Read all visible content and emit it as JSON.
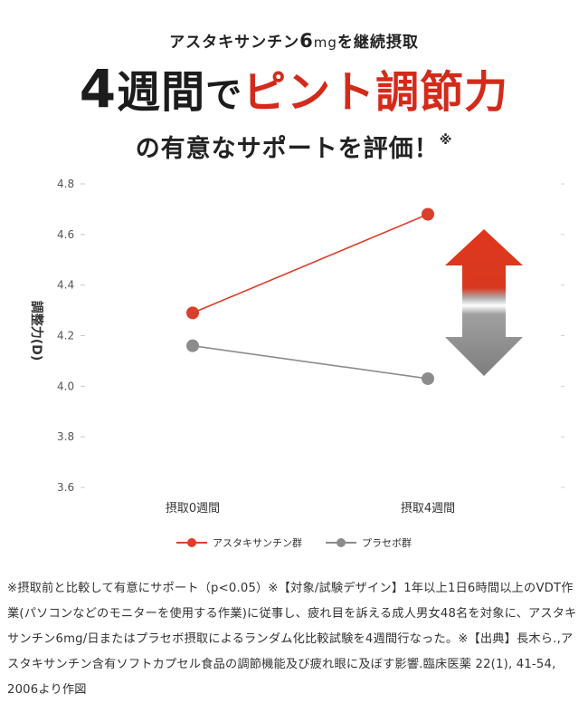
{
  "header": {
    "sub_pre": "アスタキサンチン",
    "sub_num": "6",
    "sub_unit": "mg",
    "sub_post": "を継続摂取",
    "main_num": "4",
    "main_dark": "週間",
    "main_de": "で",
    "main_red": "ピント調節力",
    "line3": "の有意なサポートを評価！",
    "line3_mark": "※"
  },
  "chart_data": {
    "type": "line",
    "categories": [
      "摂取0週間",
      "摂取4週間"
    ],
    "series": [
      {
        "name": "アスタキサンチン群",
        "values": [
          4.29,
          4.68
        ],
        "color": "#d9402b"
      },
      {
        "name": "プラセボ群",
        "values": [
          4.16,
          4.03
        ],
        "color": "#8c8c8c"
      }
    ],
    "ylabel": "調整力(D)",
    "ylim": [
      3.6,
      4.8
    ],
    "yticks": [
      "4.8",
      "4.6",
      "4.4",
      "4.2",
      "4.0",
      "3.8",
      "3.6"
    ],
    "grid": false,
    "legend": "bottom"
  },
  "footnote": "※摂取前と比較して有意にサポート（p<0.05）※【対象/試験デザイン】1年以上1日6時間以上のVDT作業(パソコンなどのモニターを使用する作業)に従事し、疲れ目を訴える成人男女48名を対象に、アスタキサンチン6mg/日またはプラセボ摂取によるランダム化比較試験を4週間行なった。※【出典】長木ら.,アスタキサンチン含有ソフトカプセル食品の調節機能及び疲れ眼に及ぼす影響.臨床医薬 22(1), 41-54, 2006より作図"
}
